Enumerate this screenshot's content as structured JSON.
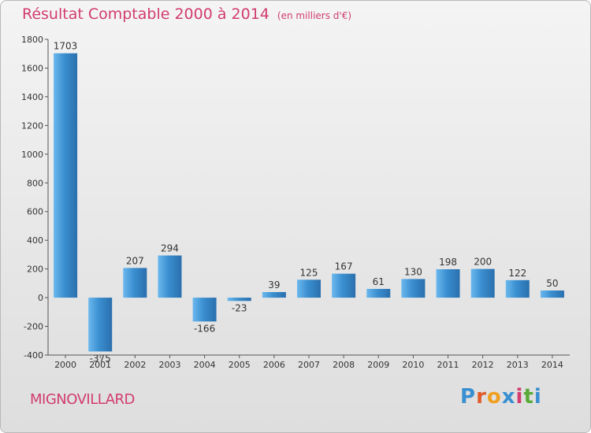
{
  "chart_data": {
    "type": "bar",
    "title": "Résultat Comptable 2000 à 2014",
    "subtitle": "(en milliers d'€)",
    "categories": [
      "2000",
      "2001",
      "2002",
      "2003",
      "2004",
      "2005",
      "2006",
      "2007",
      "2008",
      "2009",
      "2010",
      "2011",
      "2012",
      "2013",
      "2014"
    ],
    "values": [
      1703,
      -375,
      207,
      294,
      -166,
      -23,
      39,
      125,
      167,
      61,
      130,
      198,
      200,
      122,
      50
    ],
    "value_labels": [
      "1703",
      "-375",
      "207",
      "294",
      "-166",
      "-23",
      "39",
      "125",
      "167",
      "61",
      "130",
      "198",
      "200",
      "122",
      "50"
    ],
    "ylim": [
      -400,
      1800
    ],
    "yticks": [
      "-400",
      "-200",
      "0",
      "200",
      "400",
      "600",
      "800",
      "1000",
      "1200",
      "1400",
      "1600",
      "1800"
    ],
    "xlabel": "",
    "ylabel": "",
    "grid": false
  },
  "labels": {
    "commune": "MIGNOVILLARD",
    "logo": "Proxiti"
  },
  "colors": {
    "bar": "#3a8fd0",
    "accent": "#d23c6e"
  }
}
